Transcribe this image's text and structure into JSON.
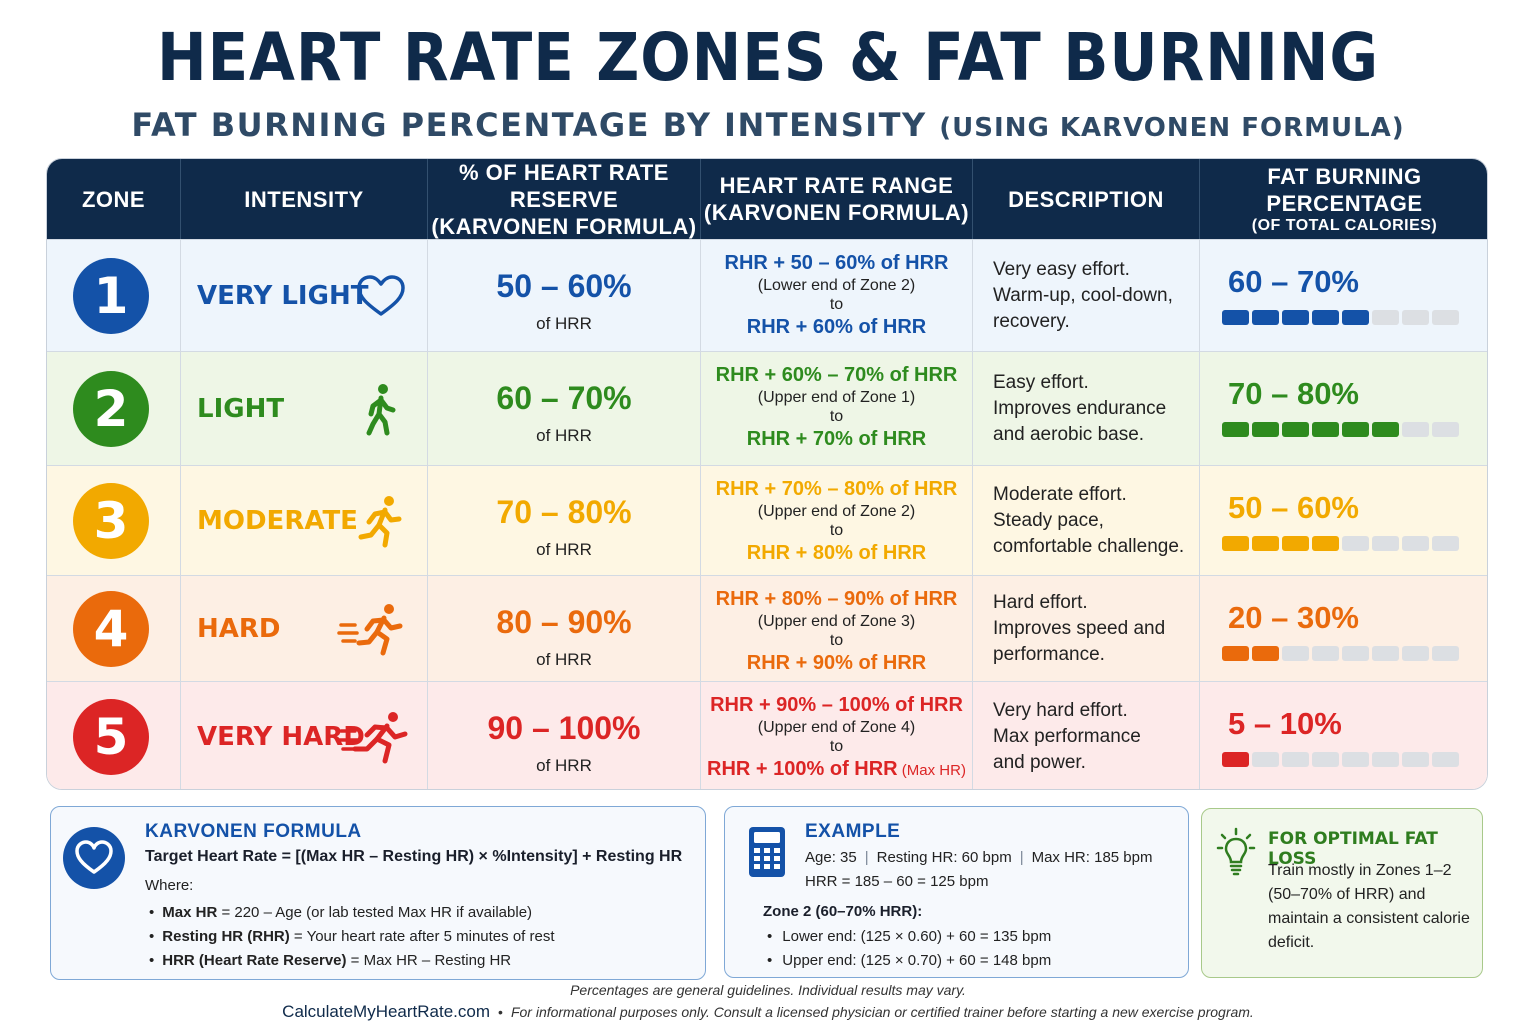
{
  "title": "HEART RATE ZONES & FAT BURNING",
  "subtitle": {
    "main": "FAT BURNING PERCENTAGE BY INTENSITY",
    "paren": "(USING KARVONEN FORMULA)"
  },
  "headers": {
    "zone": "ZONE",
    "intensity": "INTENSITY",
    "hrr_line1": "% OF HEART RATE RESERVE",
    "hrr_line2": "(KARVONEN FORMULA)",
    "range_line1": "HEART RATE RANGE",
    "range_line2": "(KARVONEN FORMULA)",
    "description": "DESCRIPTION",
    "fat_line1": "FAT BURNING",
    "fat_line2": "PERCENTAGE",
    "fat_line3": "(OF TOTAL CALORIES)"
  },
  "zones": [
    {
      "number": "1",
      "intensity": "VERY LIGHT",
      "icon": "heart-outline-icon",
      "color": "#1452a8",
      "bg": "#eef5fc",
      "hrr": "50 – 60%",
      "hrr_sub": "of HRR",
      "range_top": "RHR + 50 – 60% of HRR",
      "range_note": "(Lower end of Zone 2)",
      "range_to": "to",
      "range_bottom": "RHR + 60% of HRR",
      "range_bottom_suffix": "",
      "desc": [
        "Very easy effort.",
        "Warm-up, cool-down,",
        "recovery."
      ],
      "fat": "60 – 70%",
      "fat_level": 0.6
    },
    {
      "number": "2",
      "intensity": "LIGHT",
      "icon": "walking-person-icon",
      "color": "#2e8b1e",
      "bg": "#eef6e6",
      "hrr": "60 – 70%",
      "hrr_sub": "of HRR",
      "range_top": "RHR + 60% – 70% of HRR",
      "range_note": "(Upper end of Zone 1)",
      "range_to": "to",
      "range_bottom": "RHR + 70% of HRR",
      "range_bottom_suffix": "",
      "desc": [
        "Easy effort.",
        "Improves endurance",
        "and aerobic base."
      ],
      "fat": "70 – 80%",
      "fat_level": 0.75
    },
    {
      "number": "3",
      "intensity": "MODERATE",
      "icon": "jogging-person-icon",
      "color": "#f2a900",
      "bg": "#fef7e3",
      "hrr": "70 – 80%",
      "hrr_sub": "of HRR",
      "range_top": "RHR + 70% – 80% of HRR",
      "range_note": "(Upper end of Zone 2)",
      "range_to": "to",
      "range_bottom": "RHR + 80% of HRR",
      "range_bottom_suffix": "",
      "desc": [
        "Moderate effort.",
        "Steady pace,",
        "comfortable challenge."
      ],
      "fat": "50 – 60%",
      "fat_level": 0.55
    },
    {
      "number": "4",
      "intensity": "HARD",
      "icon": "running-person-icon",
      "color": "#ea6a0c",
      "bg": "#fdefe4",
      "hrr": "80 – 90%",
      "hrr_sub": "of HRR",
      "range_top": "RHR + 80% – 90% of HRR",
      "range_note": "(Upper end of Zone 3)",
      "range_to": "to",
      "range_bottom": "RHR + 90% of HRR",
      "range_bottom_suffix": "",
      "desc": [
        "Hard effort.",
        "Improves speed and",
        "performance."
      ],
      "fat": "20 – 30%",
      "fat_level": 0.3
    },
    {
      "number": "5",
      "intensity": "VERY HARD",
      "icon": "sprinting-person-icon",
      "color": "#dc2525",
      "bg": "#fdeaea",
      "hrr": "90 – 100%",
      "hrr_sub": "of HRR",
      "range_top": "RHR + 90% – 100% of HRR",
      "range_note": "(Upper end of Zone 4)",
      "range_to": "to",
      "range_bottom": "RHR + 100% of HRR",
      "range_bottom_suffix": "(Max HR)",
      "desc": [
        "Very hard effort.",
        "Max performance",
        "and power."
      ],
      "fat": "5 – 10%",
      "fat_level": 0.1
    }
  ],
  "karvonen": {
    "icon": "heart-circle-icon",
    "title": "KARVONEN FORMULA",
    "formula": "Target Heart Rate = [(Max HR – Resting HR) × %Intensity] + Resting HR",
    "where": "Where:",
    "items": [
      {
        "term": "Max HR",
        "def": " = 220 – Age (or lab tested Max HR if available)"
      },
      {
        "term": "Resting HR (RHR)",
        "def": " = Your heart rate after 5 minutes of rest"
      },
      {
        "term": "HRR (Heart Rate Reserve)",
        "def": " = Max HR – Resting HR"
      }
    ]
  },
  "example": {
    "icon": "calculator-icon",
    "title": "EXAMPLE",
    "age": "Age: 35",
    "rest": "Resting HR: 60 bpm",
    "max": "Max HR: 185 bpm",
    "hrr": "HRR = 185 – 60 = 125 bpm",
    "zone_label": "Zone 2 (60–70% HRR):",
    "lower": "Lower end: (125 × 0.60) + 60 = 135 bpm",
    "upper": "Upper end: (125 × 0.70) + 60 = 148 bpm"
  },
  "optimal": {
    "icon": "lightbulb-icon",
    "title": "FOR OPTIMAL FAT LOSS",
    "text": "Train mostly in Zones 1–2 (50–70% of HRR) and maintain a consistent calorie deficit."
  },
  "footer": {
    "note": "Percentages are general guidelines. Individual results may vary.",
    "site": "CalculateMyHeartRate.com",
    "disclaimer": "For informational purposes only. Consult a licensed physician or certified trainer before starting a new exercise program."
  }
}
